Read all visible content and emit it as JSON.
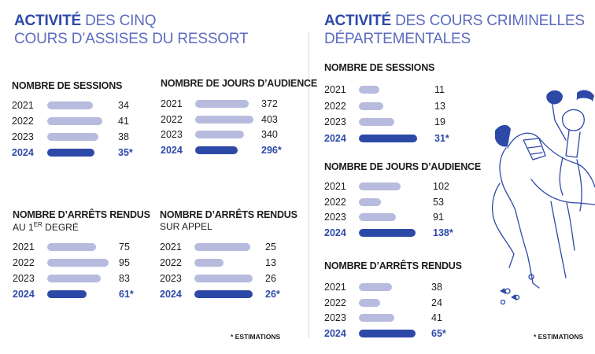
{
  "left": {
    "title_bold": "ACTIVITÉ",
    "title_line1": "DES CINQ",
    "title_line2": "COURS D’ASSISES DU RESSORT",
    "blocks": [
      {
        "title": "NOMBRE DE SESSIONS",
        "subtitle": "",
        "rows": [
          {
            "year": "2021",
            "value": 34,
            "label": "34",
            "highlight": false
          },
          {
            "year": "2022",
            "value": 41,
            "label": "41",
            "highlight": false
          },
          {
            "year": "2023",
            "value": 38,
            "label": "38",
            "highlight": false
          },
          {
            "year": "2024",
            "value": 35,
            "label": "35*",
            "highlight": true
          }
        ]
      },
      {
        "title": "NOMBRE DE JOURS D’AUDIENCE",
        "subtitle": "",
        "rows": [
          {
            "year": "2021",
            "value": 372,
            "label": "372",
            "highlight": false
          },
          {
            "year": "2022",
            "value": 403,
            "label": "403",
            "highlight": false
          },
          {
            "year": "2023",
            "value": 340,
            "label": "340",
            "highlight": false
          },
          {
            "year": "2024",
            "value": 296,
            "label": "296*",
            "highlight": true
          }
        ]
      },
      {
        "title": "NOMBRE D’ARRÊTS RENDUS",
        "subtitle_pre": "AU 1",
        "subtitle_sup": "ER",
        "subtitle_post": " DEGRÉ",
        "rows": [
          {
            "year": "2021",
            "value": 75,
            "label": "75",
            "highlight": false
          },
          {
            "year": "2022",
            "value": 95,
            "label": "95",
            "highlight": false
          },
          {
            "year": "2023",
            "value": 83,
            "label": "83",
            "highlight": false
          },
          {
            "year": "2024",
            "value": 61,
            "label": "61*",
            "highlight": true
          }
        ]
      },
      {
        "title": "NOMBRE D’ARRÊTS RENDUS",
        "subtitle": "SUR APPEL",
        "rows": [
          {
            "year": "2021",
            "value": 25,
            "label": "25",
            "highlight": false
          },
          {
            "year": "2022",
            "value": 13,
            "label": "13",
            "highlight": false
          },
          {
            "year": "2023",
            "value": 26,
            "label": "26",
            "highlight": false
          },
          {
            "year": "2024",
            "value": 26,
            "label": "26*",
            "highlight": true
          }
        ]
      }
    ],
    "note": "* ESTIMATIONS"
  },
  "right": {
    "title_bold": "ACTIVITÉ",
    "title_line1": "DES COURS CRIMINELLES",
    "title_line2": "DÉPARTEMENTALES",
    "blocks": [
      {
        "title": "NOMBRE DE SESSIONS",
        "subtitle": "",
        "rows": [
          {
            "year": "2021",
            "value": 11,
            "label": "11",
            "highlight": false
          },
          {
            "year": "2022",
            "value": 13,
            "label": "13",
            "highlight": false
          },
          {
            "year": "2023",
            "value": 19,
            "label": "19",
            "highlight": false
          },
          {
            "year": "2024",
            "value": 31,
            "label": "31*",
            "highlight": true
          }
        ]
      },
      {
        "title": "NOMBRE DE JOURS D’AUDIENCE",
        "subtitle": "",
        "rows": [
          {
            "year": "2021",
            "value": 102,
            "label": "102",
            "highlight": false
          },
          {
            "year": "2022",
            "value": 53,
            "label": "53",
            "highlight": false
          },
          {
            "year": "2023",
            "value": 91,
            "label": "91",
            "highlight": false
          },
          {
            "year": "2024",
            "value": 138,
            "label": "138*",
            "highlight": true
          }
        ]
      },
      {
        "title": "NOMBRE D’ARRÊTS RENDUS",
        "subtitle": "",
        "rows": [
          {
            "year": "2021",
            "value": 38,
            "label": "38",
            "highlight": false
          },
          {
            "year": "2022",
            "value": 24,
            "label": "24",
            "highlight": false
          },
          {
            "year": "2023",
            "value": 41,
            "label": "41",
            "highlight": false
          },
          {
            "year": "2024",
            "value": 65,
            "label": "65*",
            "highlight": true
          }
        ]
      }
    ],
    "note": "* ESTIMATIONS"
  },
  "colors": {
    "accent": "#2d49a8",
    "title_light": "#5b6bbf",
    "bar_light": "#b7bbde",
    "text": "#1d1d1b"
  },
  "chart_data": [
    {
      "type": "bar",
      "orientation": "horizontal",
      "title": "ACTIVITÉ DES CINQ COURS D’ASSISES DU RESSORT — NOMBRE DE SESSIONS",
      "categories": [
        "2021",
        "2022",
        "2023",
        "2024"
      ],
      "values": [
        34,
        41,
        38,
        35
      ],
      "notes": "2024 estimation"
    },
    {
      "type": "bar",
      "orientation": "horizontal",
      "title": "ACTIVITÉ DES CINQ COURS D’ASSISES DU RESSORT — NOMBRE DE JOURS D’AUDIENCE",
      "categories": [
        "2021",
        "2022",
        "2023",
        "2024"
      ],
      "values": [
        372,
        403,
        340,
        296
      ],
      "notes": "2024 estimation"
    },
    {
      "type": "bar",
      "orientation": "horizontal",
      "title": "ACTIVITÉ DES CINQ COURS D’ASSISES DU RESSORT — NOMBRE D’ARRÊTS RENDUS AU 1ER DEGRÉ",
      "categories": [
        "2021",
        "2022",
        "2023",
        "2024"
      ],
      "values": [
        75,
        95,
        83,
        61
      ],
      "notes": "2024 estimation"
    },
    {
      "type": "bar",
      "orientation": "horizontal",
      "title": "ACTIVITÉ DES CINQ COURS D’ASSISES DU RESSORT — NOMBRE D’ARRÊTS RENDUS SUR APPEL",
      "categories": [
        "2021",
        "2022",
        "2023",
        "2024"
      ],
      "values": [
        25,
        13,
        26,
        26
      ],
      "notes": "2024 estimation"
    },
    {
      "type": "bar",
      "orientation": "horizontal",
      "title": "ACTIVITÉ DES COURS CRIMINELLES DÉPARTEMENTALES — NOMBRE DE SESSIONS",
      "categories": [
        "2021",
        "2022",
        "2023",
        "2024"
      ],
      "values": [
        11,
        13,
        19,
        31
      ],
      "notes": "2024 estimation"
    },
    {
      "type": "bar",
      "orientation": "horizontal",
      "title": "ACTIVITÉ DES COURS CRIMINELLES DÉPARTEMENTALES — NOMBRE DE JOURS D’AUDIENCE",
      "categories": [
        "2021",
        "2022",
        "2023",
        "2024"
      ],
      "values": [
        102,
        53,
        91,
        138
      ],
      "notes": "2024 estimation"
    },
    {
      "type": "bar",
      "orientation": "horizontal",
      "title": "ACTIVITÉ DES COURS CRIMINELLES DÉPARTEMENTALES — NOMBRE D’ARRÊTS RENDUS",
      "categories": [
        "2021",
        "2022",
        "2023",
        "2024"
      ],
      "values": [
        38,
        24,
        41,
        65
      ],
      "notes": "2024 estimation"
    }
  ]
}
